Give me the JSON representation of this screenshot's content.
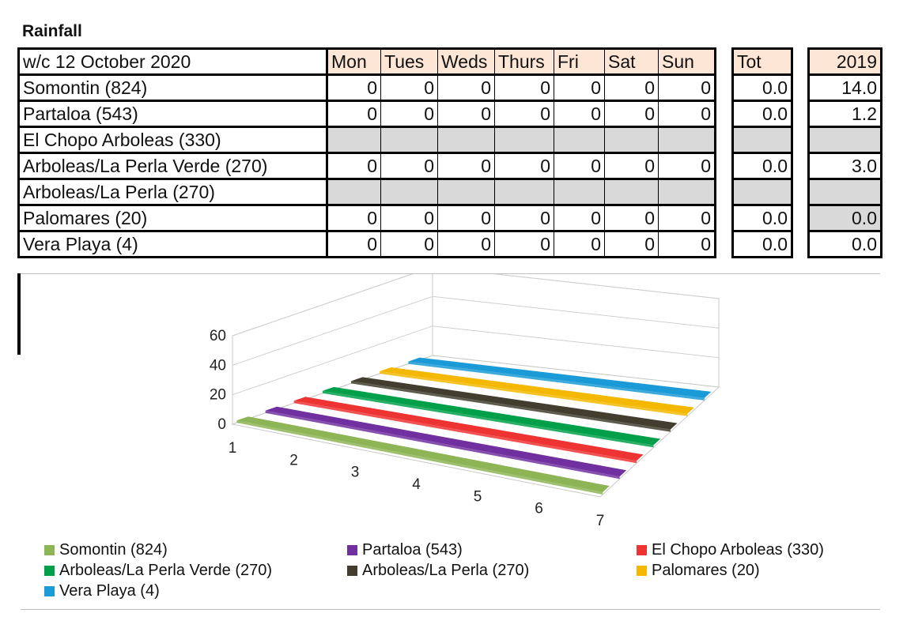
{
  "title": "Rainfall",
  "table": {
    "week_label": "w/c 12 October 2020",
    "day_headers": [
      "Mon",
      "Tues",
      "Weds",
      "Thurs",
      "Fri",
      "Sat",
      "Sun"
    ],
    "tot_header": "Tot",
    "year_header": "2019",
    "rows": [
      {
        "station": "Somontin (824)",
        "days": [
          "0",
          "0",
          "0",
          "0",
          "0",
          "0",
          "0"
        ],
        "tot": "0.0",
        "y2019": "14.0",
        "y2019_grey": false
      },
      {
        "station": "Partaloa (543)",
        "days": [
          "0",
          "0",
          "0",
          "0",
          "0",
          "0",
          "0"
        ],
        "tot": "0.0",
        "y2019": "1.2",
        "y2019_grey": false
      },
      {
        "station": "El Chopo Arboleas (330)",
        "days": null,
        "tot": "",
        "y2019": "",
        "y2019_grey": true
      },
      {
        "station": "Arboleas/La Perla Verde (270)",
        "days": [
          "0",
          "0",
          "0",
          "0",
          "0",
          "0",
          "0"
        ],
        "tot": "0.0",
        "y2019": "3.0",
        "y2019_grey": false
      },
      {
        "station": "Arboleas/La Perla (270)",
        "days": null,
        "tot": "",
        "y2019": "",
        "y2019_grey": true
      },
      {
        "station": "Palomares (20)",
        "days": [
          "0",
          "0",
          "0",
          "0",
          "0",
          "0",
          "0"
        ],
        "tot": "0.0",
        "y2019": "0.0",
        "y2019_grey": true
      },
      {
        "station": "Vera Playa (4)",
        "days": [
          "0",
          "0",
          "0",
          "0",
          "0",
          "0",
          "0"
        ],
        "tot": "0.0",
        "y2019": "0.0",
        "y2019_grey": false
      }
    ]
  },
  "chart_data": {
    "type": "bar",
    "subtype": "3d-column",
    "categories": [
      "1",
      "2",
      "3",
      "4",
      "5",
      "6",
      "7"
    ],
    "ylim": [
      0,
      60
    ],
    "yticks": [
      "0",
      "20",
      "40",
      "60"
    ],
    "grid": true,
    "legend_position": "bottom",
    "series": [
      {
        "name": "Somontin (824)",
        "values": [
          0,
          0,
          0,
          0,
          0,
          0,
          0
        ],
        "color": "#8db455"
      },
      {
        "name": "Partaloa (543)",
        "values": [
          0,
          0,
          0,
          0,
          0,
          0,
          0
        ],
        "color": "#7030a0"
      },
      {
        "name": "El Chopo Arboleas (330)",
        "values": [
          0,
          0,
          0,
          0,
          0,
          0,
          0
        ],
        "color": "#ee3333"
      },
      {
        "name": "Arboleas/La Perla Verde (270)",
        "values": [
          0,
          0,
          0,
          0,
          0,
          0,
          0
        ],
        "color": "#00a04a"
      },
      {
        "name": "Arboleas/La Perla (270)",
        "values": [
          0,
          0,
          0,
          0,
          0,
          0,
          0
        ],
        "color": "#423d2f"
      },
      {
        "name": "Palomares (20)",
        "values": [
          0,
          0,
          0,
          0,
          0,
          0,
          0
        ],
        "color": "#f5b800"
      },
      {
        "name": "Vera Playa (4)",
        "values": [
          0,
          0,
          0,
          0,
          0,
          0,
          0
        ],
        "color": "#1a9ad7"
      }
    ]
  }
}
